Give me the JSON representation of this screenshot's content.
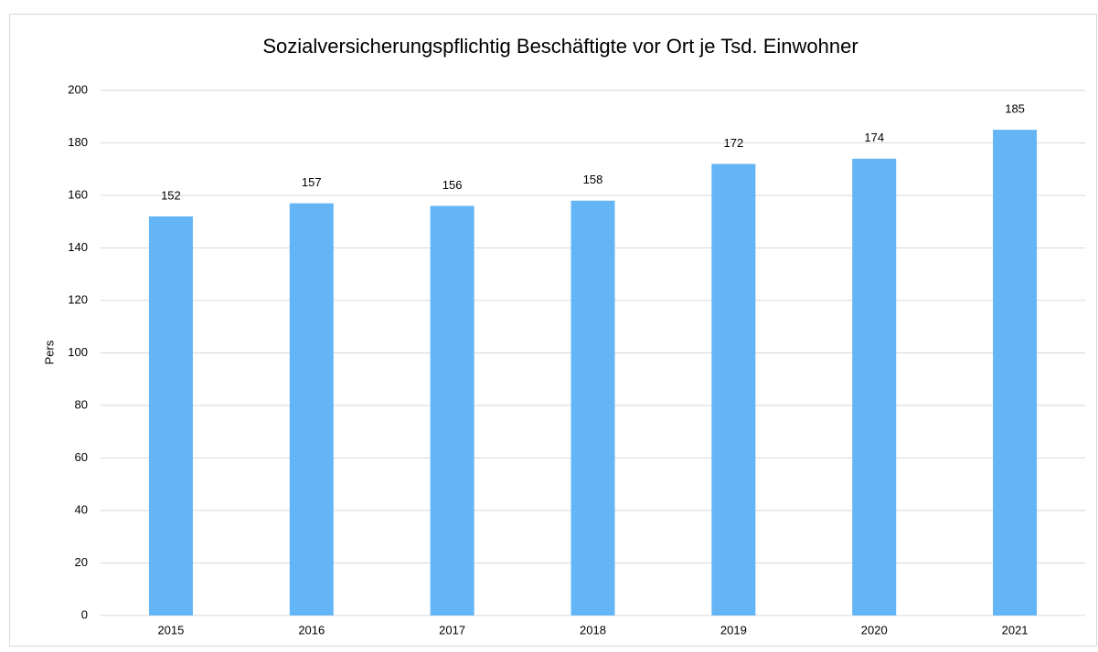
{
  "chart_data": {
    "type": "bar",
    "title": "Sozialversicherungspflichtig Beschäftigte vor Ort je Tsd. Einwohner",
    "ylabel": "Pers",
    "categories": [
      "2015",
      "2016",
      "2017",
      "2018",
      "2019",
      "2020",
      "2021"
    ],
    "values": [
      152,
      157,
      156,
      158,
      172,
      174,
      185
    ],
    "color": "#64b5f6",
    "ylim": [
      0,
      200
    ],
    "yticks": [
      0,
      20,
      40,
      60,
      80,
      100,
      120,
      140,
      160,
      180,
      200
    ],
    "grid": true
  }
}
